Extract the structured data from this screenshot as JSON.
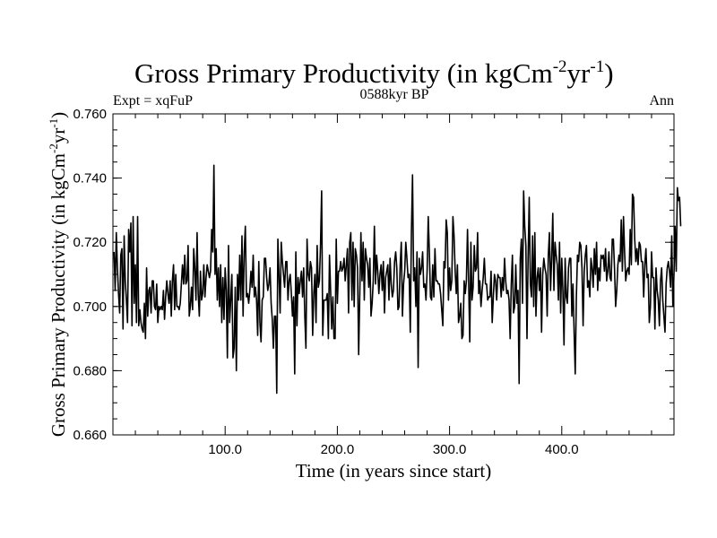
{
  "chart_data": {
    "type": "line",
    "title": {
      "main": "Gross Primary Productivity (in kgCm",
      "unit_exp1": "-2",
      "unit_mid": "yr",
      "unit_exp2": "-1",
      "unit_end": ")"
    },
    "subtitle_left": "Expt = xqFuP",
    "subtitle_center": "0588kyr BP",
    "subtitle_right": "Ann",
    "xlabel": "Time (in years since start)",
    "ylabel": {
      "main": "Gross Primary Productivity (in kgCm",
      "unit_exp1": "-2",
      "unit_mid": "yr",
      "unit_exp2": "-1",
      "unit_end": ")"
    },
    "xlim": [
      0,
      500
    ],
    "ylim": [
      0.66,
      0.76
    ],
    "xticks": [
      100,
      200,
      300,
      400
    ],
    "xtick_labels": [
      "100.0",
      "200.0",
      "300.0",
      "400.0"
    ],
    "yticks": [
      0.66,
      0.68,
      0.7,
      0.72,
      0.74,
      0.76
    ],
    "ytick_labels": [
      "0.660",
      "0.680",
      "0.700",
      "0.720",
      "0.740",
      "0.760"
    ],
    "series": [
      {
        "name": "Gross Primary Productivity",
        "color": "#000000",
        "x_start": 1,
        "x_step": 1,
        "values": [
          0.717,
          0.705,
          0.723,
          0.712,
          0.704,
          0.698,
          0.716,
          0.718,
          0.693,
          0.722,
          0.708,
          0.702,
          0.695,
          0.724,
          0.717,
          0.726,
          0.694,
          0.728,
          0.701,
          0.713,
          0.695,
          0.728,
          0.694,
          0.699,
          0.695,
          0.693,
          0.692,
          0.701,
          0.69,
          0.712,
          0.697,
          0.705,
          0.706,
          0.698,
          0.708,
          0.708,
          0.7,
          0.699,
          0.707,
          0.695,
          0.7,
          0.699,
          0.7,
          0.699,
          0.705,
          0.696,
          0.703,
          0.708,
          0.704,
          0.701,
          0.708,
          0.697,
          0.708,
          0.713,
          0.699,
          0.71,
          0.7,
          0.7,
          0.699,
          0.701,
          0.707,
          0.713,
          0.707,
          0.716,
          0.707,
          0.708,
          0.719,
          0.697,
          0.7,
          0.706,
          0.699,
          0.718,
          0.712,
          0.702,
          0.723,
          0.704,
          0.697,
          0.711,
          0.702,
          0.704,
          0.713,
          0.703,
          0.709,
          0.713,
          0.711,
          0.709,
          0.711,
          0.724,
          0.717,
          0.744,
          0.71,
          0.718,
          0.702,
          0.712,
          0.7,
          0.713,
          0.695,
          0.709,
          0.696,
          0.712,
          0.705,
          0.684,
          0.719,
          0.695,
          0.702,
          0.71,
          0.684,
          0.687,
          0.706,
          0.68,
          0.71,
          0.702,
          0.716,
          0.702,
          0.722,
          0.697,
          0.717,
          0.725,
          0.703,
          0.704,
          0.701,
          0.705,
          0.711,
          0.706,
          0.716,
          0.703,
          0.706,
          0.702,
          0.691,
          0.714,
          0.695,
          0.689,
          0.702,
          0.703,
          0.715,
          0.715,
          0.709,
          0.705,
          0.707,
          0.712,
          0.701,
          0.696,
          0.687,
          0.697,
          0.697,
          0.673,
          0.721,
          0.71,
          0.698,
          0.72,
          0.714,
          0.71,
          0.706,
          0.714,
          0.714,
          0.702,
          0.708,
          0.71,
          0.704,
          0.697,
          0.703,
          0.679,
          0.717,
          0.694,
          0.709,
          0.704,
          0.708,
          0.711,
          0.703,
          0.712,
          0.697,
          0.687,
          0.721,
          0.71,
          0.708,
          0.714,
          0.712,
          0.691,
          0.704,
          0.71,
          0.695,
          0.719,
          0.706,
          0.708,
          0.719,
          0.736,
          0.691,
          0.702,
          0.702,
          0.702,
          0.704,
          0.69,
          0.716,
          0.705,
          0.693,
          0.703,
          0.69,
          0.69,
          0.721,
          0.701,
          0.711,
          0.711,
          0.714,
          0.711,
          0.712,
          0.715,
          0.708,
          0.713,
          0.718,
          0.698,
          0.72,
          0.723,
          0.702,
          0.72,
          0.7,
          0.718,
          0.716,
          0.712,
          0.685,
          0.704,
          0.723,
          0.708,
          0.72,
          0.702,
          0.718,
          0.715,
          0.713,
          0.706,
          0.715,
          0.697,
          0.701,
          0.708,
          0.725,
          0.707,
          0.716,
          0.711,
          0.704,
          0.71,
          0.713,
          0.705,
          0.714,
          0.698,
          0.709,
          0.711,
          0.713,
          0.702,
          0.715,
          0.707,
          0.703,
          0.705,
          0.714,
          0.717,
          0.712,
          0.699,
          0.7,
          0.713,
          0.72,
          0.697,
          0.707,
          0.711,
          0.72,
          0.715,
          0.709,
          0.71,
          0.692,
          0.723,
          0.741,
          0.708,
          0.712,
          0.7,
          0.717,
          0.681,
          0.715,
          0.71,
          0.712,
          0.717,
          0.706,
          0.707,
          0.702,
          0.711,
          0.728,
          0.717,
          0.703,
          0.702,
          0.713,
          0.703,
          0.718,
          0.708,
          0.708,
          0.707,
          0.707,
          0.704,
          0.699,
          0.694,
          0.714,
          0.712,
          0.727,
          0.723,
          0.702,
          0.712,
          0.705,
          0.708,
          0.728,
          0.722,
          0.711,
          0.704,
          0.713,
          0.695,
          0.697,
          0.701,
          0.69,
          0.691,
          0.708,
          0.704,
          0.708,
          0.724,
          0.708,
          0.689,
          0.72,
          0.702,
          0.706,
          0.719,
          0.711,
          0.712,
          0.723,
          0.704,
          0.708,
          0.7,
          0.705,
          0.709,
          0.715,
          0.707,
          0.707,
          0.702,
          0.703,
          0.703,
          0.711,
          0.695,
          0.703,
          0.71,
          0.708,
          0.702,
          0.71,
          0.709,
          0.709,
          0.703,
          0.709,
          0.705,
          0.715,
          0.708,
          0.704,
          0.705,
          0.702,
          0.69,
          0.707,
          0.716,
          0.698,
          0.7,
          0.713,
          0.701,
          0.705,
          0.676,
          0.715,
          0.721,
          0.701,
          0.736,
          0.725,
          0.719,
          0.69,
          0.715,
          0.734,
          0.707,
          0.703,
          0.722,
          0.7,
          0.723,
          0.697,
          0.709,
          0.712,
          0.705,
          0.712,
          0.692,
          0.71,
          0.715,
          0.712,
          0.71,
          0.697,
          0.716,
          0.723,
          0.705,
          0.715,
          0.729,
          0.705,
          0.72,
          0.716,
          0.713,
          0.702,
          0.72,
          0.698,
          0.715,
          0.705,
          0.688,
          0.715,
          0.703,
          0.701,
          0.712,
          0.715,
          0.715,
          0.697,
          0.707,
          0.692,
          0.679,
          0.703,
          0.716,
          0.714,
          0.72,
          0.719,
          0.712,
          0.694,
          0.711,
          0.716,
          0.719,
          0.706,
          0.708,
          0.703,
          0.715,
          0.712,
          0.706,
          0.718,
          0.71,
          0.72,
          0.705,
          0.712,
          0.708,
          0.716,
          0.715,
          0.716,
          0.711,
          0.718,
          0.708,
          0.711,
          0.717,
          0.709,
          0.708,
          0.721,
          0.721,
          0.712,
          0.7,
          0.705,
          0.713,
          0.716,
          0.714,
          0.727,
          0.711,
          0.728,
          0.717,
          0.708,
          0.711,
          0.712,
          0.71,
          0.724,
          0.713,
          0.735,
          0.734,
          0.721,
          0.714,
          0.718,
          0.713,
          0.72,
          0.719,
          0.714,
          0.714,
          0.703,
          0.713,
          0.718,
          0.709,
          0.71,
          0.695,
          0.7,
          0.717,
          0.709,
          0.709,
          0.693,
          0.712,
          0.705,
          0.702,
          0.694,
          0.708,
          0.712,
          0.702,
          0.697,
          0.692,
          0.707,
          0.712,
          0.714,
          0.711,
          0.706,
          0.722,
          0.7,
          0.71,
          0.725,
          0.711,
          0.737,
          0.733,
          0.734,
          0.725
        ]
      }
    ]
  }
}
